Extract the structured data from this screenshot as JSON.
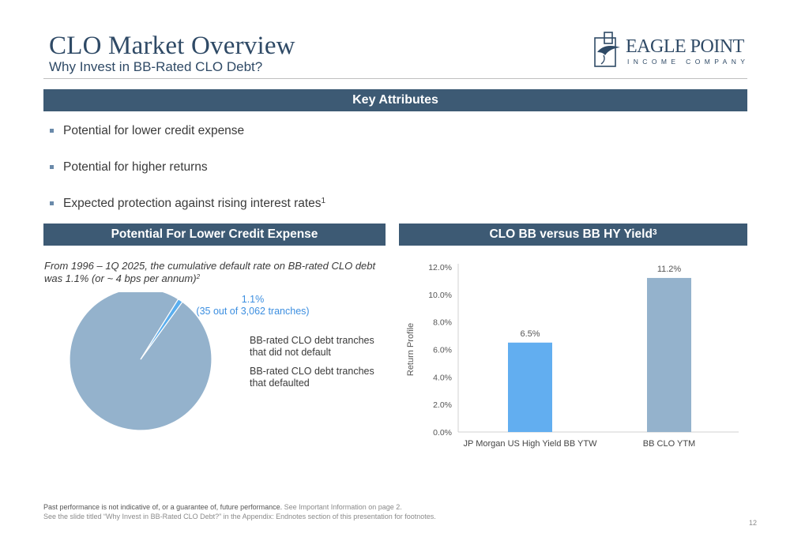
{
  "header": {
    "title": "CLO Market Overview",
    "subtitle": "Why Invest in BB-Rated CLO Debt?"
  },
  "logo": {
    "name": "EAGLE POINT",
    "tagline": "INCOME COMPANY",
    "color": "#2f4a66"
  },
  "key_attributes": {
    "heading": "Key Attributes",
    "bullets": [
      "Potential for lower credit expense",
      "Potential for higher returns",
      "Expected protection against rising interest rates"
    ],
    "bullet3_sup": "1"
  },
  "credit_expense": {
    "heading": "Potential For Lower Credit Expense",
    "note": "From 1996 – 1Q 2025, the cumulative default rate on BB-rated CLO debt was 1.1% (or ~ 4 bps per annum)",
    "note_sup": "2",
    "pie_label_pct": "1.1%",
    "pie_label_detail": "(35 out of 3,062 tranches)",
    "legend": [
      "BB-rated CLO debt tranches that did not default",
      "BB-rated CLO debt tranches that defaulted"
    ]
  },
  "yield_chart": {
    "heading": "CLO BB versus BB HY Yield",
    "heading_sup": "3"
  },
  "chart_data": [
    {
      "type": "pie",
      "categories": [
        "BB-rated CLO debt tranches that did not default",
        "BB-rated CLO debt tranches that defaulted"
      ],
      "values": [
        98.9,
        1.1
      ],
      "colors": [
        "#94b2cc",
        "#5aaeee"
      ]
    },
    {
      "type": "bar",
      "categories": [
        "JP Morgan US High Yield BB YTW",
        "BB CLO YTM"
      ],
      "values": [
        6.5,
        11.2
      ],
      "value_labels": [
        "6.5%",
        "11.2%"
      ],
      "colors": [
        "#62aef0",
        "#94b2cc"
      ],
      "ylabel": "Return Profile",
      "ylim": [
        0,
        12
      ],
      "yticks": [
        "0.0%",
        "2.0%",
        "4.0%",
        "6.0%",
        "8.0%",
        "10.0%",
        "12.0%"
      ]
    }
  ],
  "footer": {
    "disclaimer_bold": "Past performance is not indicative of, or a guarantee of, future performance.",
    "disclaimer_rest": " See Important Information on page 2.",
    "line2": "See the slide titled “Why Invest in BB-Rated CLO Debt?” in the Appendix: Endnotes section of this presentation for footnotes.",
    "page": "12"
  }
}
